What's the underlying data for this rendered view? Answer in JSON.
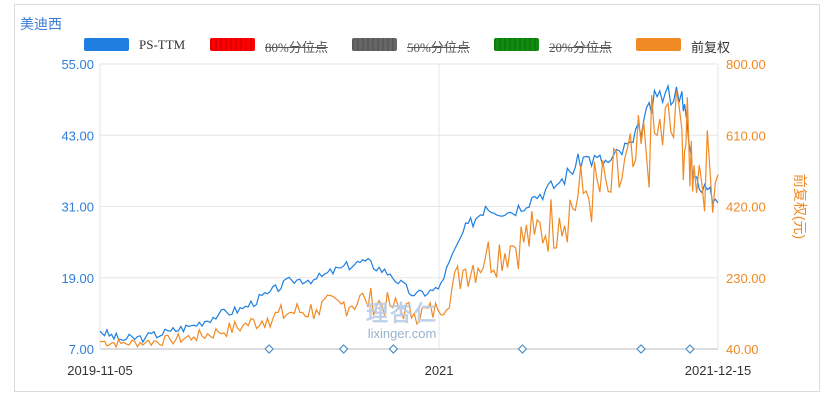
{
  "title": "美迪西",
  "watermark": {
    "main": "理杏仁",
    "sub": "lixinger.com"
  },
  "colors": {
    "ps": "#1e7fe0",
    "p80": "#ff0000",
    "p50": "#666666",
    "p20": "#118c11",
    "price": "#f08a24"
  },
  "legend": [
    {
      "label": "PS-TTM",
      "color": "#1e7fe0",
      "active": true
    },
    {
      "label": "80%分位点",
      "color": "#ff0000",
      "active": false
    },
    {
      "label": "50%分位点",
      "color": "#666666",
      "active": false
    },
    {
      "label": "20%分位点",
      "color": "#118c11",
      "active": false
    },
    {
      "label": "前复权",
      "color": "#f08a24",
      "active": true
    }
  ],
  "chart_data": {
    "type": "line",
    "x_start": "2019-11-05",
    "x_end": "2021-12-15",
    "x_ticks": [
      "2019-11-05",
      "2021",
      "2021-12-15"
    ],
    "y_left": {
      "ticks": [
        "7.00",
        "19.00",
        "31.00",
        "43.00",
        "55.00"
      ],
      "range": [
        7,
        55
      ]
    },
    "y_right": {
      "label": "前复权(元)",
      "ticks": [
        "40.00",
        "230.00",
        "420.00",
        "610.00",
        "800.00"
      ],
      "range": [
        40,
        800
      ]
    },
    "grid": true,
    "series": [
      {
        "name": "PS-TTM",
        "axis": "left",
        "points": [
          [
            "2019-11-05",
            10.0
          ],
          [
            "2019-12-01",
            8.6
          ],
          [
            "2020-01-01",
            9.0
          ],
          [
            "2020-02-01",
            10.0
          ],
          [
            "2020-03-01",
            11.0
          ],
          [
            "2020-04-01",
            12.8
          ],
          [
            "2020-05-01",
            13.8
          ],
          [
            "2020-06-01",
            16.3
          ],
          [
            "2020-07-01",
            18.6
          ],
          [
            "2020-08-01",
            18.8
          ],
          [
            "2020-09-01",
            20.7
          ],
          [
            "2020-10-01",
            21.8
          ],
          [
            "2020-11-01",
            19.6
          ],
          [
            "2020-12-01",
            16.0
          ],
          [
            "2020-12-31",
            17.1
          ],
          [
            "2021-01-31",
            26.7
          ],
          [
            "2021-02-28",
            31.0
          ],
          [
            "2021-03-31",
            30.0
          ],
          [
            "2021-04-30",
            32.7
          ],
          [
            "2021-05-31",
            35.0
          ],
          [
            "2021-06-30",
            39.3
          ],
          [
            "2021-07-31",
            38.4
          ],
          [
            "2021-08-31",
            41.8
          ],
          [
            "2021-09-30",
            49.5
          ],
          [
            "2021-10-31",
            50.4
          ],
          [
            "2021-11-15",
            36.0
          ],
          [
            "2021-12-15",
            31.6
          ]
        ]
      },
      {
        "name": "前复权",
        "axis": "right",
        "points": [
          [
            "2019-11-05",
            60
          ],
          [
            "2019-12-01",
            55
          ],
          [
            "2020-01-01",
            58
          ],
          [
            "2020-02-01",
            64
          ],
          [
            "2020-03-01",
            72
          ],
          [
            "2020-04-01",
            85
          ],
          [
            "2020-05-01",
            102
          ],
          [
            "2020-06-01",
            122
          ],
          [
            "2020-07-01",
            138
          ],
          [
            "2020-08-01",
            145
          ],
          [
            "2020-09-01",
            160
          ],
          [
            "2020-10-01",
            172
          ],
          [
            "2020-11-01",
            155
          ],
          [
            "2020-12-01",
            135
          ],
          [
            "2020-12-31",
            142
          ],
          [
            "2021-01-31",
            250
          ],
          [
            "2021-02-28",
            285
          ],
          [
            "2021-03-31",
            315
          ],
          [
            "2021-04-30",
            345
          ],
          [
            "2021-05-31",
            390
          ],
          [
            "2021-06-30",
            455
          ],
          [
            "2021-07-31",
            460
          ],
          [
            "2021-08-31",
            525
          ],
          [
            "2021-09-30",
            610
          ],
          [
            "2021-10-31",
            625
          ],
          [
            "2021-11-15",
            530
          ],
          [
            "2021-12-15",
            505
          ]
        ]
      }
    ],
    "event_markers": [
      "2020-06-03",
      "2020-09-04",
      "2020-11-05",
      "2021-04-15",
      "2021-09-10",
      "2021-11-10"
    ]
  }
}
